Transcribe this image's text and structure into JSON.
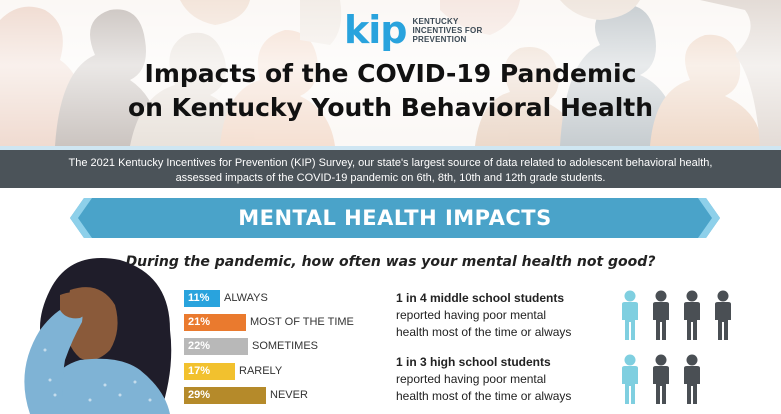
{
  "header": {
    "logo_mark": "kip",
    "logo_text": [
      "KENTUCKY",
      "INCENTIVES FOR",
      "PREVENTION"
    ],
    "title_line1": "Impacts of the COVID-19 Pandemic",
    "title_line2": "on Kentucky Youth Behavioral Health"
  },
  "intro": {
    "line1": "The 2021 Kentucky Incentives for Prevention (KIP) Survey, our state's largest source of data related to adolescent behavioral health,",
    "line2": "assessed impacts of the COVID-19 pandemic on 6th, 8th, 10th and 12th grade students."
  },
  "section": {
    "title": "MENTAL HEALTH IMPACTS",
    "question": "During the pandemic, how often was your mental health not good?"
  },
  "responses": [
    {
      "percent": "11%",
      "value": 11,
      "label": "ALWAYS",
      "color": "#29a3dd"
    },
    {
      "percent": "21%",
      "value": 21,
      "label": "MOST OF THE TIME",
      "color": "#ea7a2e"
    },
    {
      "percent": "22%",
      "value": 22,
      "label": "SOMETIMES",
      "color": "#b8b8b8"
    },
    {
      "percent": "17%",
      "value": 17,
      "label": "RARELY",
      "color": "#f2c12e"
    },
    {
      "percent": "29%",
      "value": 29,
      "label": "NEVER",
      "color": "#b58a2a"
    }
  ],
  "stats": [
    {
      "headline": "1 in 4  middle school students",
      "line1": "reported having poor mental",
      "line2": "health most of the time or always",
      "highlighted": 1,
      "total": 4
    },
    {
      "headline": "1 in 3  high school students",
      "line1": "reported having poor mental",
      "line2": "health most of the time or always",
      "highlighted": 1,
      "total": 3
    }
  ],
  "colors": {
    "accent_blue": "#29a3dd",
    "banner_blue": "#4aa3c9",
    "dark_strip": "#4b5359",
    "person_highlight": "#7fcfe0",
    "person_dark": "#4a4f54"
  }
}
